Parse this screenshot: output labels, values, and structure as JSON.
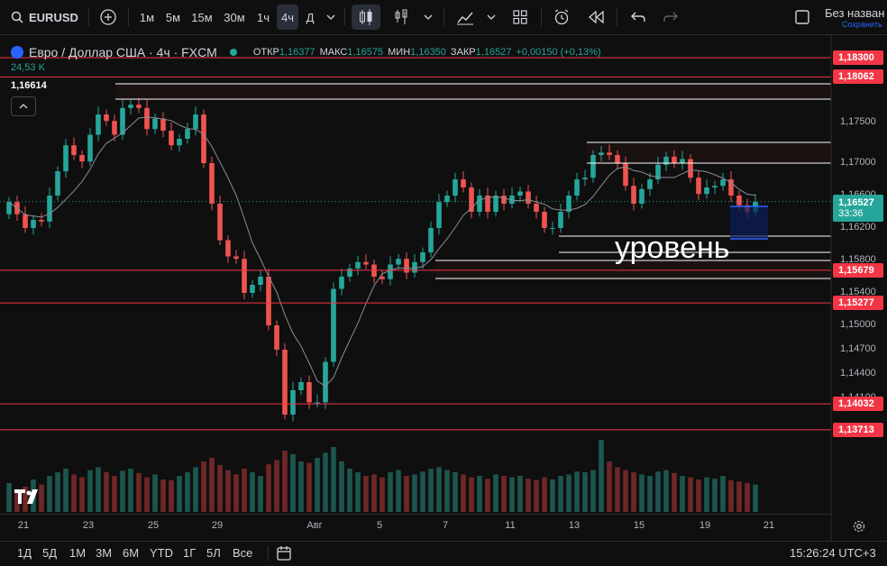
{
  "symbol": "EURUSD",
  "timeframes": [
    "1м",
    "5м",
    "15м",
    "30м",
    "1ч",
    "4ч",
    "Д"
  ],
  "active_timeframe": "4ч",
  "layout_name": "Без назван",
  "layout_save": "Сохранить",
  "legend": {
    "title": "Евро / Доллар США · 4ч · FXCM",
    "o_label": "ОТКР",
    "o": "1,16377",
    "h_label": "МАКС",
    "h": "1,16575",
    "l_label": "МИН",
    "l": "1,16350",
    "c_label": "ЗАКР",
    "c": "1,16527",
    "change": "+0,00150 (+0,13%)",
    "volume": "24,53 K",
    "ma_value": "1,16614"
  },
  "annotation": "уровень",
  "price_axis": [
    "1,17500",
    "1,17000",
    "1,16600",
    "1,16200",
    "1,15800",
    "1,15400",
    "1,15000",
    "1,14700",
    "1,14400",
    "1,14100"
  ],
  "current_price": "1,16527",
  "countdown": "33:36",
  "red_levels": [
    "1,18300",
    "1,18062",
    "1,15679",
    "1,15277",
    "1,14032",
    "1,13713"
  ],
  "x_axis": [
    "21",
    "23",
    "25",
    "29",
    "Авг",
    "5",
    "7",
    "11",
    "13",
    "15",
    "19",
    "21"
  ],
  "ranges": [
    "1Д",
    "5Д",
    "1М",
    "3М",
    "6М",
    "YTD",
    "1Г",
    "5Л",
    "Все"
  ],
  "clock": "15:26:24 UTC+3",
  "colors": {
    "up": "#26a69a",
    "down": "#ef5350",
    "level": "#f23645",
    "bg": "#0f0f0f"
  },
  "chart_data": {
    "type": "candlestick",
    "closes": [
      1.1652,
      1.1637,
      1.162,
      1.163,
      1.1628,
      1.166,
      1.169,
      1.1722,
      1.171,
      1.1702,
      1.1735,
      1.176,
      1.1752,
      1.1735,
      1.1768,
      1.1772,
      1.1768,
      1.1742,
      1.1755,
      1.174,
      1.1722,
      1.173,
      1.1742,
      1.176,
      1.17,
      1.165,
      1.1605,
      1.1585,
      1.1582,
      1.154,
      1.155,
      1.156,
      1.15,
      1.147,
      1.139,
      1.142,
      1.143,
      1.1405,
      1.1405,
      1.1455,
      1.1545,
      1.156,
      1.157,
      1.1578,
      1.1575,
      1.156,
      1.1557,
      1.1575,
      1.1582,
      1.1565,
      1.1578,
      1.159,
      1.162,
      1.1652,
      1.166,
      1.168,
      1.167,
      1.164,
      1.166,
      1.164,
      1.166,
      1.165,
      1.166,
      1.1665,
      1.165,
      1.164,
      1.162,
      1.162,
      1.164,
      1.166,
      1.168,
      1.1682,
      1.171,
      1.1713,
      1.171,
      1.17,
      1.1672,
      1.165,
      1.1668,
      1.168,
      1.1698,
      1.1708,
      1.17,
      1.1705,
      1.1682,
      1.1662,
      1.167,
      1.1672,
      1.168,
      1.166,
      1.1648,
      1.164,
      1.1652
    ],
    "volume": [
      40,
      30,
      35,
      45,
      38,
      50,
      55,
      60,
      52,
      48,
      58,
      62,
      55,
      50,
      57,
      60,
      54,
      48,
      52,
      45,
      44,
      50,
      55,
      62,
      70,
      75,
      65,
      58,
      52,
      60,
      55,
      50,
      66,
      72,
      85,
      80,
      70,
      68,
      75,
      82,
      90,
      70,
      60,
      55,
      50,
      52,
      48,
      55,
      58,
      50,
      52,
      56,
      60,
      62,
      58,
      55,
      52,
      48,
      50,
      46,
      52,
      50,
      48,
      50,
      46,
      44,
      48,
      45,
      50,
      52,
      56,
      55,
      58,
      100,
      70,
      62,
      58,
      55,
      52,
      50,
      56,
      58,
      54,
      50,
      48,
      45,
      48,
      46,
      50,
      44,
      42,
      40,
      38
    ],
    "price_labels": [
      "1,17500",
      "1,17000",
      "1,16600",
      "1,16200",
      "1,15800",
      "1,15400",
      "1,15000",
      "1,14700",
      "1,14400",
      "1,14100"
    ],
    "date_labels": [
      "21",
      "23",
      "25",
      "29",
      "Авг",
      "5",
      "7",
      "11",
      "13",
      "15",
      "19",
      "21"
    ]
  }
}
